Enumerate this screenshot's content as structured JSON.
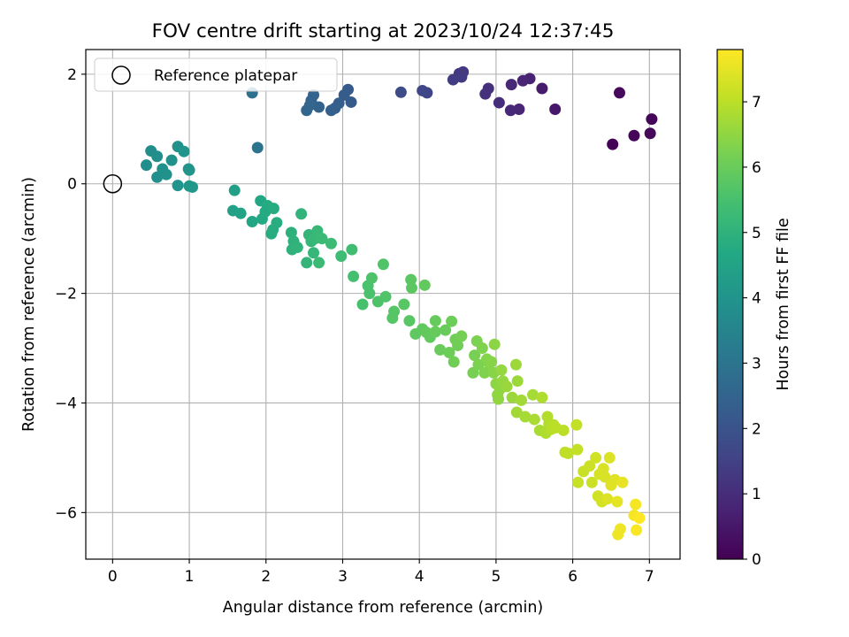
{
  "chart_data": {
    "type": "scatter",
    "title": "FOV centre drift starting at 2023/10/24 12:37:45",
    "xlabel": "Angular distance from reference (arcmin)",
    "ylabel": "Rotation from reference (arcmin)",
    "xlim": [
      -0.35,
      7.4
    ],
    "ylim": [
      -6.85,
      2.45
    ],
    "xticks": [
      0,
      1,
      2,
      3,
      4,
      5,
      6,
      7
    ],
    "yticks": [
      -6,
      -4,
      -2,
      0,
      2
    ],
    "grid": true,
    "legend": {
      "location": "upper-left",
      "entries": [
        "Reference platepar"
      ]
    },
    "reference_point": {
      "label": "Reference platepar",
      "x": 0,
      "y": 0,
      "marker": "open-circle"
    },
    "colorbar": {
      "label": "Hours from first FF file",
      "colormap": "viridis",
      "range": [
        0,
        7.8
      ],
      "ticks": [
        0,
        1,
        2,
        3,
        4,
        5,
        6,
        7
      ]
    },
    "series": [
      {
        "points": [
          {
            "x": 6.52,
            "y": 0.72,
            "c": 0.05
          },
          {
            "x": 6.8,
            "y": 0.88,
            "c": 0.1
          },
          {
            "x": 7.01,
            "y": 0.92,
            "c": 0.15
          },
          {
            "x": 7.03,
            "y": 1.18,
            "c": 0.1
          },
          {
            "x": 6.61,
            "y": 1.66,
            "c": 0.2
          },
          {
            "x": 5.77,
            "y": 1.36,
            "c": 0.5
          },
          {
            "x": 5.6,
            "y": 1.74,
            "c": 0.6
          },
          {
            "x": 5.44,
            "y": 1.92,
            "c": 0.75
          },
          {
            "x": 5.35,
            "y": 1.88,
            "c": 0.8
          },
          {
            "x": 5.3,
            "y": 1.36,
            "c": 0.8
          },
          {
            "x": 5.19,
            "y": 1.34,
            "c": 0.85
          },
          {
            "x": 5.2,
            "y": 1.81,
            "c": 0.9
          },
          {
            "x": 5.04,
            "y": 1.48,
            "c": 1.0
          },
          {
            "x": 4.9,
            "y": 1.74,
            "c": 1.05
          },
          {
            "x": 4.86,
            "y": 1.64,
            "c": 1.1
          },
          {
            "x": 4.57,
            "y": 2.04,
            "c": 1.3
          },
          {
            "x": 4.52,
            "y": 2.01,
            "c": 1.3
          },
          {
            "x": 4.55,
            "y": 1.95,
            "c": 1.35
          },
          {
            "x": 4.44,
            "y": 1.9,
            "c": 1.4
          },
          {
            "x": 4.1,
            "y": 1.66,
            "c": 1.6
          },
          {
            "x": 4.04,
            "y": 1.7,
            "c": 1.65
          },
          {
            "x": 3.76,
            "y": 1.67,
            "c": 1.8
          },
          {
            "x": 3.11,
            "y": 1.49,
            "c": 2.2
          },
          {
            "x": 3.07,
            "y": 1.72,
            "c": 2.2
          },
          {
            "x": 3.02,
            "y": 1.62,
            "c": 2.25
          },
          {
            "x": 2.95,
            "y": 1.47,
            "c": 2.3
          },
          {
            "x": 2.9,
            "y": 1.38,
            "c": 2.35
          },
          {
            "x": 2.85,
            "y": 1.34,
            "c": 2.35
          },
          {
            "x": 2.69,
            "y": 1.4,
            "c": 2.45
          },
          {
            "x": 2.62,
            "y": 1.62,
            "c": 2.5
          },
          {
            "x": 2.59,
            "y": 1.52,
            "c": 2.5
          },
          {
            "x": 2.57,
            "y": 1.43,
            "c": 2.55
          },
          {
            "x": 2.53,
            "y": 1.34,
            "c": 2.55
          },
          {
            "x": 1.82,
            "y": 1.66,
            "c": 2.9
          },
          {
            "x": 1.89,
            "y": 0.66,
            "c": 3.0
          },
          {
            "x": 0.44,
            "y": 0.34,
            "c": 3.8
          },
          {
            "x": 0.5,
            "y": 0.6,
            "c": 3.8
          },
          {
            "x": 0.58,
            "y": 0.5,
            "c": 3.85
          },
          {
            "x": 0.58,
            "y": 0.12,
            "c": 3.85
          },
          {
            "x": 0.65,
            "y": 0.27,
            "c": 3.9
          },
          {
            "x": 0.7,
            "y": 0.17,
            "c": 3.9
          },
          {
            "x": 0.77,
            "y": 0.43,
            "c": 3.95
          },
          {
            "x": 0.85,
            "y": 0.68,
            "c": 3.95
          },
          {
            "x": 0.85,
            "y": -0.03,
            "c": 4.0
          },
          {
            "x": 0.93,
            "y": 0.59,
            "c": 4.0
          },
          {
            "x": 0.99,
            "y": 0.27,
            "c": 4.05
          },
          {
            "x": 1.0,
            "y": 0.25,
            "c": 4.05
          },
          {
            "x": 1.0,
            "y": -0.04,
            "c": 4.1
          },
          {
            "x": 1.04,
            "y": -0.06,
            "c": 4.1
          },
          {
            "x": 1.59,
            "y": -0.12,
            "c": 4.4
          },
          {
            "x": 1.57,
            "y": -0.49,
            "c": 4.45
          },
          {
            "x": 1.67,
            "y": -0.54,
            "c": 4.5
          },
          {
            "x": 1.82,
            "y": -0.69,
            "c": 4.6
          },
          {
            "x": 1.93,
            "y": -0.31,
            "c": 4.65
          },
          {
            "x": 1.95,
            "y": -0.64,
            "c": 4.7
          },
          {
            "x": 1.99,
            "y": -0.51,
            "c": 4.75
          },
          {
            "x": 2.02,
            "y": -0.4,
            "c": 4.75
          },
          {
            "x": 2.07,
            "y": -0.91,
            "c": 4.8
          },
          {
            "x": 2.1,
            "y": -0.45,
            "c": 4.8
          },
          {
            "x": 2.09,
            "y": -0.84,
            "c": 4.85
          },
          {
            "x": 2.14,
            "y": -0.71,
            "c": 4.85
          },
          {
            "x": 2.33,
            "y": -0.89,
            "c": 4.95
          },
          {
            "x": 2.36,
            "y": -1.05,
            "c": 5.0
          },
          {
            "x": 2.34,
            "y": -1.2,
            "c": 5.0
          },
          {
            "x": 2.41,
            "y": -1.16,
            "c": 5.05
          },
          {
            "x": 2.46,
            "y": -0.55,
            "c": 5.05
          },
          {
            "x": 2.53,
            "y": -1.44,
            "c": 5.1
          },
          {
            "x": 2.56,
            "y": -0.93,
            "c": 5.1
          },
          {
            "x": 2.59,
            "y": -1.05,
            "c": 5.15
          },
          {
            "x": 2.62,
            "y": -1.26,
            "c": 5.15
          },
          {
            "x": 2.64,
            "y": -1.0,
            "c": 5.2
          },
          {
            "x": 2.67,
            "y": -0.86,
            "c": 5.2
          },
          {
            "x": 2.69,
            "y": -1.44,
            "c": 5.25
          },
          {
            "x": 2.73,
            "y": -1.0,
            "c": 5.25
          },
          {
            "x": 2.85,
            "y": -1.09,
            "c": 5.3
          },
          {
            "x": 2.98,
            "y": -1.32,
            "c": 5.35
          },
          {
            "x": 3.12,
            "y": -1.2,
            "c": 5.4
          },
          {
            "x": 3.14,
            "y": -1.69,
            "c": 5.45
          },
          {
            "x": 3.26,
            "y": -2.2,
            "c": 5.5
          },
          {
            "x": 3.33,
            "y": -1.86,
            "c": 5.55
          },
          {
            "x": 3.35,
            "y": -2.0,
            "c": 5.55
          },
          {
            "x": 3.38,
            "y": -1.72,
            "c": 5.6
          },
          {
            "x": 3.46,
            "y": -2.15,
            "c": 5.6
          },
          {
            "x": 3.53,
            "y": -1.47,
            "c": 5.65
          },
          {
            "x": 3.56,
            "y": -2.06,
            "c": 5.65
          },
          {
            "x": 3.65,
            "y": -2.45,
            "c": 5.7
          },
          {
            "x": 3.67,
            "y": -2.33,
            "c": 5.7
          },
          {
            "x": 3.8,
            "y": -2.2,
            "c": 5.75
          },
          {
            "x": 3.87,
            "y": -2.5,
            "c": 5.75
          },
          {
            "x": 3.89,
            "y": -1.75,
            "c": 5.8
          },
          {
            "x": 3.9,
            "y": -1.9,
            "c": 5.8
          },
          {
            "x": 3.95,
            "y": -2.74,
            "c": 5.85
          },
          {
            "x": 4.04,
            "y": -2.65,
            "c": 5.85
          },
          {
            "x": 4.07,
            "y": -1.85,
            "c": 5.9
          },
          {
            "x": 4.09,
            "y": -2.71,
            "c": 5.9
          },
          {
            "x": 4.14,
            "y": -2.8,
            "c": 5.9
          },
          {
            "x": 4.21,
            "y": -2.7,
            "c": 5.95
          },
          {
            "x": 4.21,
            "y": -2.5,
            "c": 5.95
          },
          {
            "x": 4.27,
            "y": -3.03,
            "c": 6.0
          },
          {
            "x": 4.34,
            "y": -2.67,
            "c": 6.0
          },
          {
            "x": 4.39,
            "y": -3.08,
            "c": 6.05
          },
          {
            "x": 4.42,
            "y": -2.51,
            "c": 6.05
          },
          {
            "x": 4.45,
            "y": -3.25,
            "c": 6.1
          },
          {
            "x": 4.47,
            "y": -2.84,
            "c": 6.1
          },
          {
            "x": 4.5,
            "y": -2.95,
            "c": 6.1
          },
          {
            "x": 4.55,
            "y": -2.78,
            "c": 6.15
          },
          {
            "x": 4.7,
            "y": -3.45,
            "c": 6.2
          },
          {
            "x": 4.72,
            "y": -3.13,
            "c": 6.2
          },
          {
            "x": 4.75,
            "y": -2.87,
            "c": 6.25
          },
          {
            "x": 4.77,
            "y": -3.3,
            "c": 6.25
          },
          {
            "x": 4.82,
            "y": -3.0,
            "c": 6.3
          },
          {
            "x": 4.85,
            "y": -3.45,
            "c": 6.3
          },
          {
            "x": 4.88,
            "y": -3.2,
            "c": 6.35
          },
          {
            "x": 4.91,
            "y": -3.28,
            "c": 6.35
          },
          {
            "x": 4.94,
            "y": -3.25,
            "c": 6.4
          },
          {
            "x": 4.97,
            "y": -3.45,
            "c": 6.4
          },
          {
            "x": 4.98,
            "y": -2.93,
            "c": 6.45
          },
          {
            "x": 5.0,
            "y": -3.65,
            "c": 6.45
          },
          {
            "x": 5.02,
            "y": -3.85,
            "c": 6.5
          },
          {
            "x": 5.03,
            "y": -3.93,
            "c": 6.5
          },
          {
            "x": 5.05,
            "y": -3.75,
            "c": 6.5
          },
          {
            "x": 5.07,
            "y": -3.4,
            "c": 6.55
          },
          {
            "x": 5.09,
            "y": -3.6,
            "c": 6.55
          },
          {
            "x": 5.14,
            "y": -3.7,
            "c": 6.6
          },
          {
            "x": 5.21,
            "y": -3.9,
            "c": 6.6
          },
          {
            "x": 5.26,
            "y": -3.3,
            "c": 6.65
          },
          {
            "x": 5.28,
            "y": -3.6,
            "c": 6.65
          },
          {
            "x": 5.27,
            "y": -4.17,
            "c": 6.7
          },
          {
            "x": 5.33,
            "y": -3.95,
            "c": 6.7
          },
          {
            "x": 5.38,
            "y": -4.25,
            "c": 6.75
          },
          {
            "x": 5.48,
            "y": -3.85,
            "c": 6.75
          },
          {
            "x": 5.5,
            "y": -4.3,
            "c": 6.8
          },
          {
            "x": 5.57,
            "y": -4.5,
            "c": 6.8
          },
          {
            "x": 5.6,
            "y": -3.9,
            "c": 6.85
          },
          {
            "x": 5.65,
            "y": -4.55,
            "c": 6.85
          },
          {
            "x": 5.67,
            "y": -4.25,
            "c": 6.9
          },
          {
            "x": 5.69,
            "y": -4.38,
            "c": 6.9
          },
          {
            "x": 5.72,
            "y": -4.48,
            "c": 6.95
          },
          {
            "x": 5.75,
            "y": -4.4,
            "c": 6.95
          },
          {
            "x": 5.78,
            "y": -4.45,
            "c": 7.0
          },
          {
            "x": 5.88,
            "y": -4.5,
            "c": 7.0
          },
          {
            "x": 5.9,
            "y": -4.9,
            "c": 7.05
          },
          {
            "x": 5.94,
            "y": -4.92,
            "c": 7.05
          },
          {
            "x": 6.05,
            "y": -4.4,
            "c": 7.1
          },
          {
            "x": 6.06,
            "y": -4.85,
            "c": 7.1
          },
          {
            "x": 6.07,
            "y": -5.45,
            "c": 7.15
          },
          {
            "x": 6.14,
            "y": -5.25,
            "c": 7.15
          },
          {
            "x": 6.22,
            "y": -5.15,
            "c": 7.2
          },
          {
            "x": 6.25,
            "y": -5.45,
            "c": 7.2
          },
          {
            "x": 6.3,
            "y": -5.0,
            "c": 7.25
          },
          {
            "x": 6.33,
            "y": -5.7,
            "c": 7.25
          },
          {
            "x": 6.35,
            "y": -5.3,
            "c": 7.3
          },
          {
            "x": 6.38,
            "y": -5.8,
            "c": 7.3
          },
          {
            "x": 6.4,
            "y": -5.2,
            "c": 7.35
          },
          {
            "x": 6.42,
            "y": -5.35,
            "c": 7.35
          },
          {
            "x": 6.45,
            "y": -5.75,
            "c": 7.4
          },
          {
            "x": 6.48,
            "y": -5.0,
            "c": 7.4
          },
          {
            "x": 6.5,
            "y": -5.5,
            "c": 7.45
          },
          {
            "x": 6.55,
            "y": -5.4,
            "c": 7.45
          },
          {
            "x": 6.58,
            "y": -5.8,
            "c": 7.5
          },
          {
            "x": 6.59,
            "y": -6.4,
            "c": 7.6
          },
          {
            "x": 6.62,
            "y": -6.3,
            "c": 7.6
          },
          {
            "x": 6.65,
            "y": -5.45,
            "c": 7.55
          },
          {
            "x": 6.8,
            "y": -6.05,
            "c": 7.7
          },
          {
            "x": 6.82,
            "y": -5.85,
            "c": 7.7
          },
          {
            "x": 6.83,
            "y": -6.32,
            "c": 7.75
          },
          {
            "x": 6.87,
            "y": -6.1,
            "c": 7.8
          }
        ]
      }
    ]
  }
}
